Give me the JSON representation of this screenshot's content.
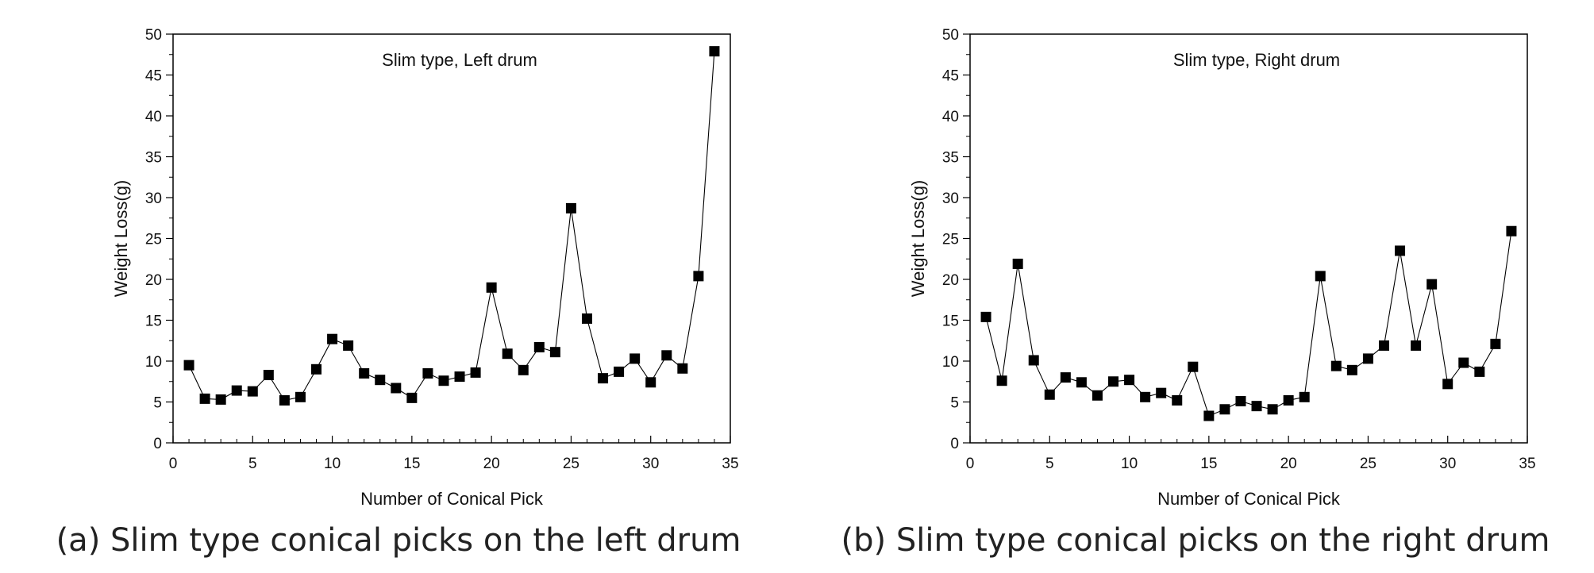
{
  "chart_data": [
    {
      "type": "line",
      "title": "Slim type, Left drum",
      "caption": "(a) Slim type conical picks on the left drum",
      "xlabel": "Number of Conical Pick",
      "ylabel": "Weight Loss(g)",
      "xlim": [
        0,
        35
      ],
      "ylim": [
        0,
        50
      ],
      "xticks": [
        "0",
        "5",
        "10",
        "15",
        "20",
        "25",
        "30",
        "35"
      ],
      "yticks": [
        "0",
        "5",
        "10",
        "15",
        "20",
        "25",
        "30",
        "35",
        "40",
        "45",
        "50"
      ],
      "grid": false,
      "marker": "square",
      "series": [
        {
          "x": [
            1,
            2,
            3,
            4,
            5,
            6,
            7,
            8,
            9,
            10,
            11,
            12,
            13,
            14,
            15,
            16,
            17,
            18,
            19,
            20,
            21,
            22,
            23,
            24,
            25,
            26,
            27,
            28,
            29,
            30,
            31,
            32,
            33,
            34
          ],
          "values": [
            9.5,
            5.4,
            5.3,
            6.4,
            6.3,
            8.3,
            5.2,
            5.6,
            9.0,
            12.7,
            11.9,
            8.5,
            7.7,
            6.7,
            5.5,
            8.5,
            7.6,
            8.1,
            8.6,
            19.0,
            10.9,
            8.9,
            11.7,
            11.1,
            28.7,
            15.2,
            7.9,
            8.7,
            10.3,
            7.4,
            10.7,
            9.1,
            20.4,
            47.9
          ],
          "color": "#000000"
        }
      ]
    },
    {
      "type": "line",
      "title": "Slim type, Right drum",
      "caption": "(b) Slim type conical picks on the right drum",
      "xlabel": "Number of Conical Pick",
      "ylabel": "Weight Loss(g)",
      "xlim": [
        0,
        35
      ],
      "ylim": [
        0,
        50
      ],
      "xticks": [
        "0",
        "5",
        "10",
        "15",
        "20",
        "25",
        "30",
        "35"
      ],
      "yticks": [
        "0",
        "5",
        "10",
        "15",
        "20",
        "25",
        "30",
        "35",
        "40",
        "45",
        "50"
      ],
      "grid": false,
      "marker": "square",
      "series": [
        {
          "x": [
            1,
            2,
            3,
            4,
            5,
            6,
            7,
            8,
            9,
            10,
            11,
            12,
            13,
            14,
            15,
            16,
            17,
            18,
            19,
            20,
            21,
            22,
            23,
            24,
            25,
            26,
            27,
            28,
            29,
            30,
            31,
            32,
            33,
            34
          ],
          "values": [
            15.4,
            7.6,
            21.9,
            10.1,
            5.9,
            8.0,
            7.4,
            5.8,
            7.5,
            7.7,
            5.6,
            6.1,
            5.2,
            9.3,
            3.3,
            4.1,
            5.1,
            4.5,
            4.1,
            5.2,
            5.6,
            20.4,
            9.4,
            8.9,
            10.3,
            11.9,
            23.5,
            11.9,
            19.4,
            7.2,
            9.8,
            8.7,
            12.1,
            25.9
          ],
          "color": "#000000"
        }
      ]
    }
  ]
}
